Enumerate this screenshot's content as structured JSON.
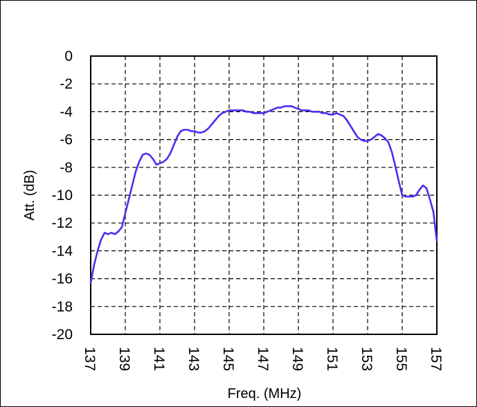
{
  "chart_data": {
    "type": "line",
    "title": "",
    "xlabel": "Freq. (MHz)",
    "ylabel": "Att. (dB)",
    "xlim": [
      137,
      157
    ],
    "ylim": [
      -20,
      0
    ],
    "x_ticks": [
      137,
      139,
      141,
      143,
      145,
      147,
      149,
      151,
      153,
      155,
      157
    ],
    "x_tick_labels": [
      "137",
      "139",
      "141",
      "143",
      "145",
      "147",
      "149",
      "151",
      "153",
      "155",
      "157"
    ],
    "y_ticks": [
      0,
      -2,
      -4,
      -6,
      -8,
      -10,
      -12,
      -14,
      -16,
      -18,
      -20
    ],
    "y_tick_labels": [
      "0",
      "-2",
      "-4",
      "-6",
      "-8",
      "-10",
      "-12",
      "-14",
      "-16",
      "-18",
      "-20"
    ],
    "grid": true,
    "grid_style": "dashed",
    "legend": "none",
    "line_color": "#4b2cf0",
    "series": [
      {
        "x": [
          137.0,
          137.2,
          137.4,
          137.6,
          137.8,
          138.0,
          138.2,
          138.4,
          138.6,
          138.8,
          139.0,
          139.2,
          139.4,
          139.6,
          139.8,
          140.0,
          140.2,
          140.4,
          140.6,
          140.8,
          141.0,
          141.2,
          141.4,
          141.6,
          141.8,
          142.0,
          142.2,
          142.4,
          142.6,
          142.8,
          143.0,
          143.2,
          143.4,
          143.6,
          143.8,
          144.0,
          144.2,
          144.4,
          144.6,
          144.8,
          145.0,
          145.2,
          145.4,
          145.6,
          145.8,
          146.0,
          146.2,
          146.4,
          146.6,
          146.8,
          147.0,
          147.2,
          147.4,
          147.6,
          147.8,
          148.0,
          148.2,
          148.4,
          148.6,
          148.8,
          149.0,
          149.2,
          149.4,
          149.6,
          149.8,
          150.0,
          150.2,
          150.4,
          150.6,
          150.8,
          151.0,
          151.2,
          151.4,
          151.6,
          151.8,
          152.0,
          152.2,
          152.4,
          152.6,
          152.8,
          153.0,
          153.2,
          153.4,
          153.6,
          153.8,
          154.0,
          154.2,
          154.4,
          154.6,
          154.8,
          155.0,
          155.2,
          155.4,
          155.6,
          155.8,
          156.0,
          156.2,
          156.4,
          156.6,
          156.8,
          157.0
        ],
        "y": [
          -16.3,
          -15.0,
          -14.0,
          -13.2,
          -12.7,
          -12.8,
          -12.7,
          -12.8,
          -12.6,
          -12.3,
          -11.3,
          -10.3,
          -9.3,
          -8.3,
          -7.6,
          -7.1,
          -7.0,
          -7.1,
          -7.4,
          -7.8,
          -7.7,
          -7.6,
          -7.4,
          -7.0,
          -6.4,
          -5.8,
          -5.4,
          -5.3,
          -5.3,
          -5.4,
          -5.4,
          -5.5,
          -5.5,
          -5.4,
          -5.2,
          -4.9,
          -4.6,
          -4.3,
          -4.1,
          -4.0,
          -3.9,
          -3.9,
          -3.9,
          -3.9,
          -3.9,
          -4.0,
          -4.0,
          -4.1,
          -4.1,
          -4.1,
          -4.1,
          -4.0,
          -3.9,
          -3.8,
          -3.7,
          -3.7,
          -3.6,
          -3.6,
          -3.6,
          -3.7,
          -3.8,
          -3.9,
          -3.9,
          -3.9,
          -4.0,
          -4.0,
          -4.0,
          -4.1,
          -4.1,
          -4.2,
          -4.2,
          -4.1,
          -4.2,
          -4.3,
          -4.6,
          -5.0,
          -5.4,
          -5.8,
          -6.0,
          -6.1,
          -6.1,
          -6.0,
          -5.8,
          -5.6,
          -5.7,
          -5.9,
          -6.2,
          -6.9,
          -7.9,
          -9.0,
          -10.0,
          -10.1,
          -10.1,
          -10.1,
          -10.0,
          -9.6,
          -9.3,
          -9.5,
          -10.3,
          -11.2,
          -13.3
        ]
      }
    ]
  }
}
